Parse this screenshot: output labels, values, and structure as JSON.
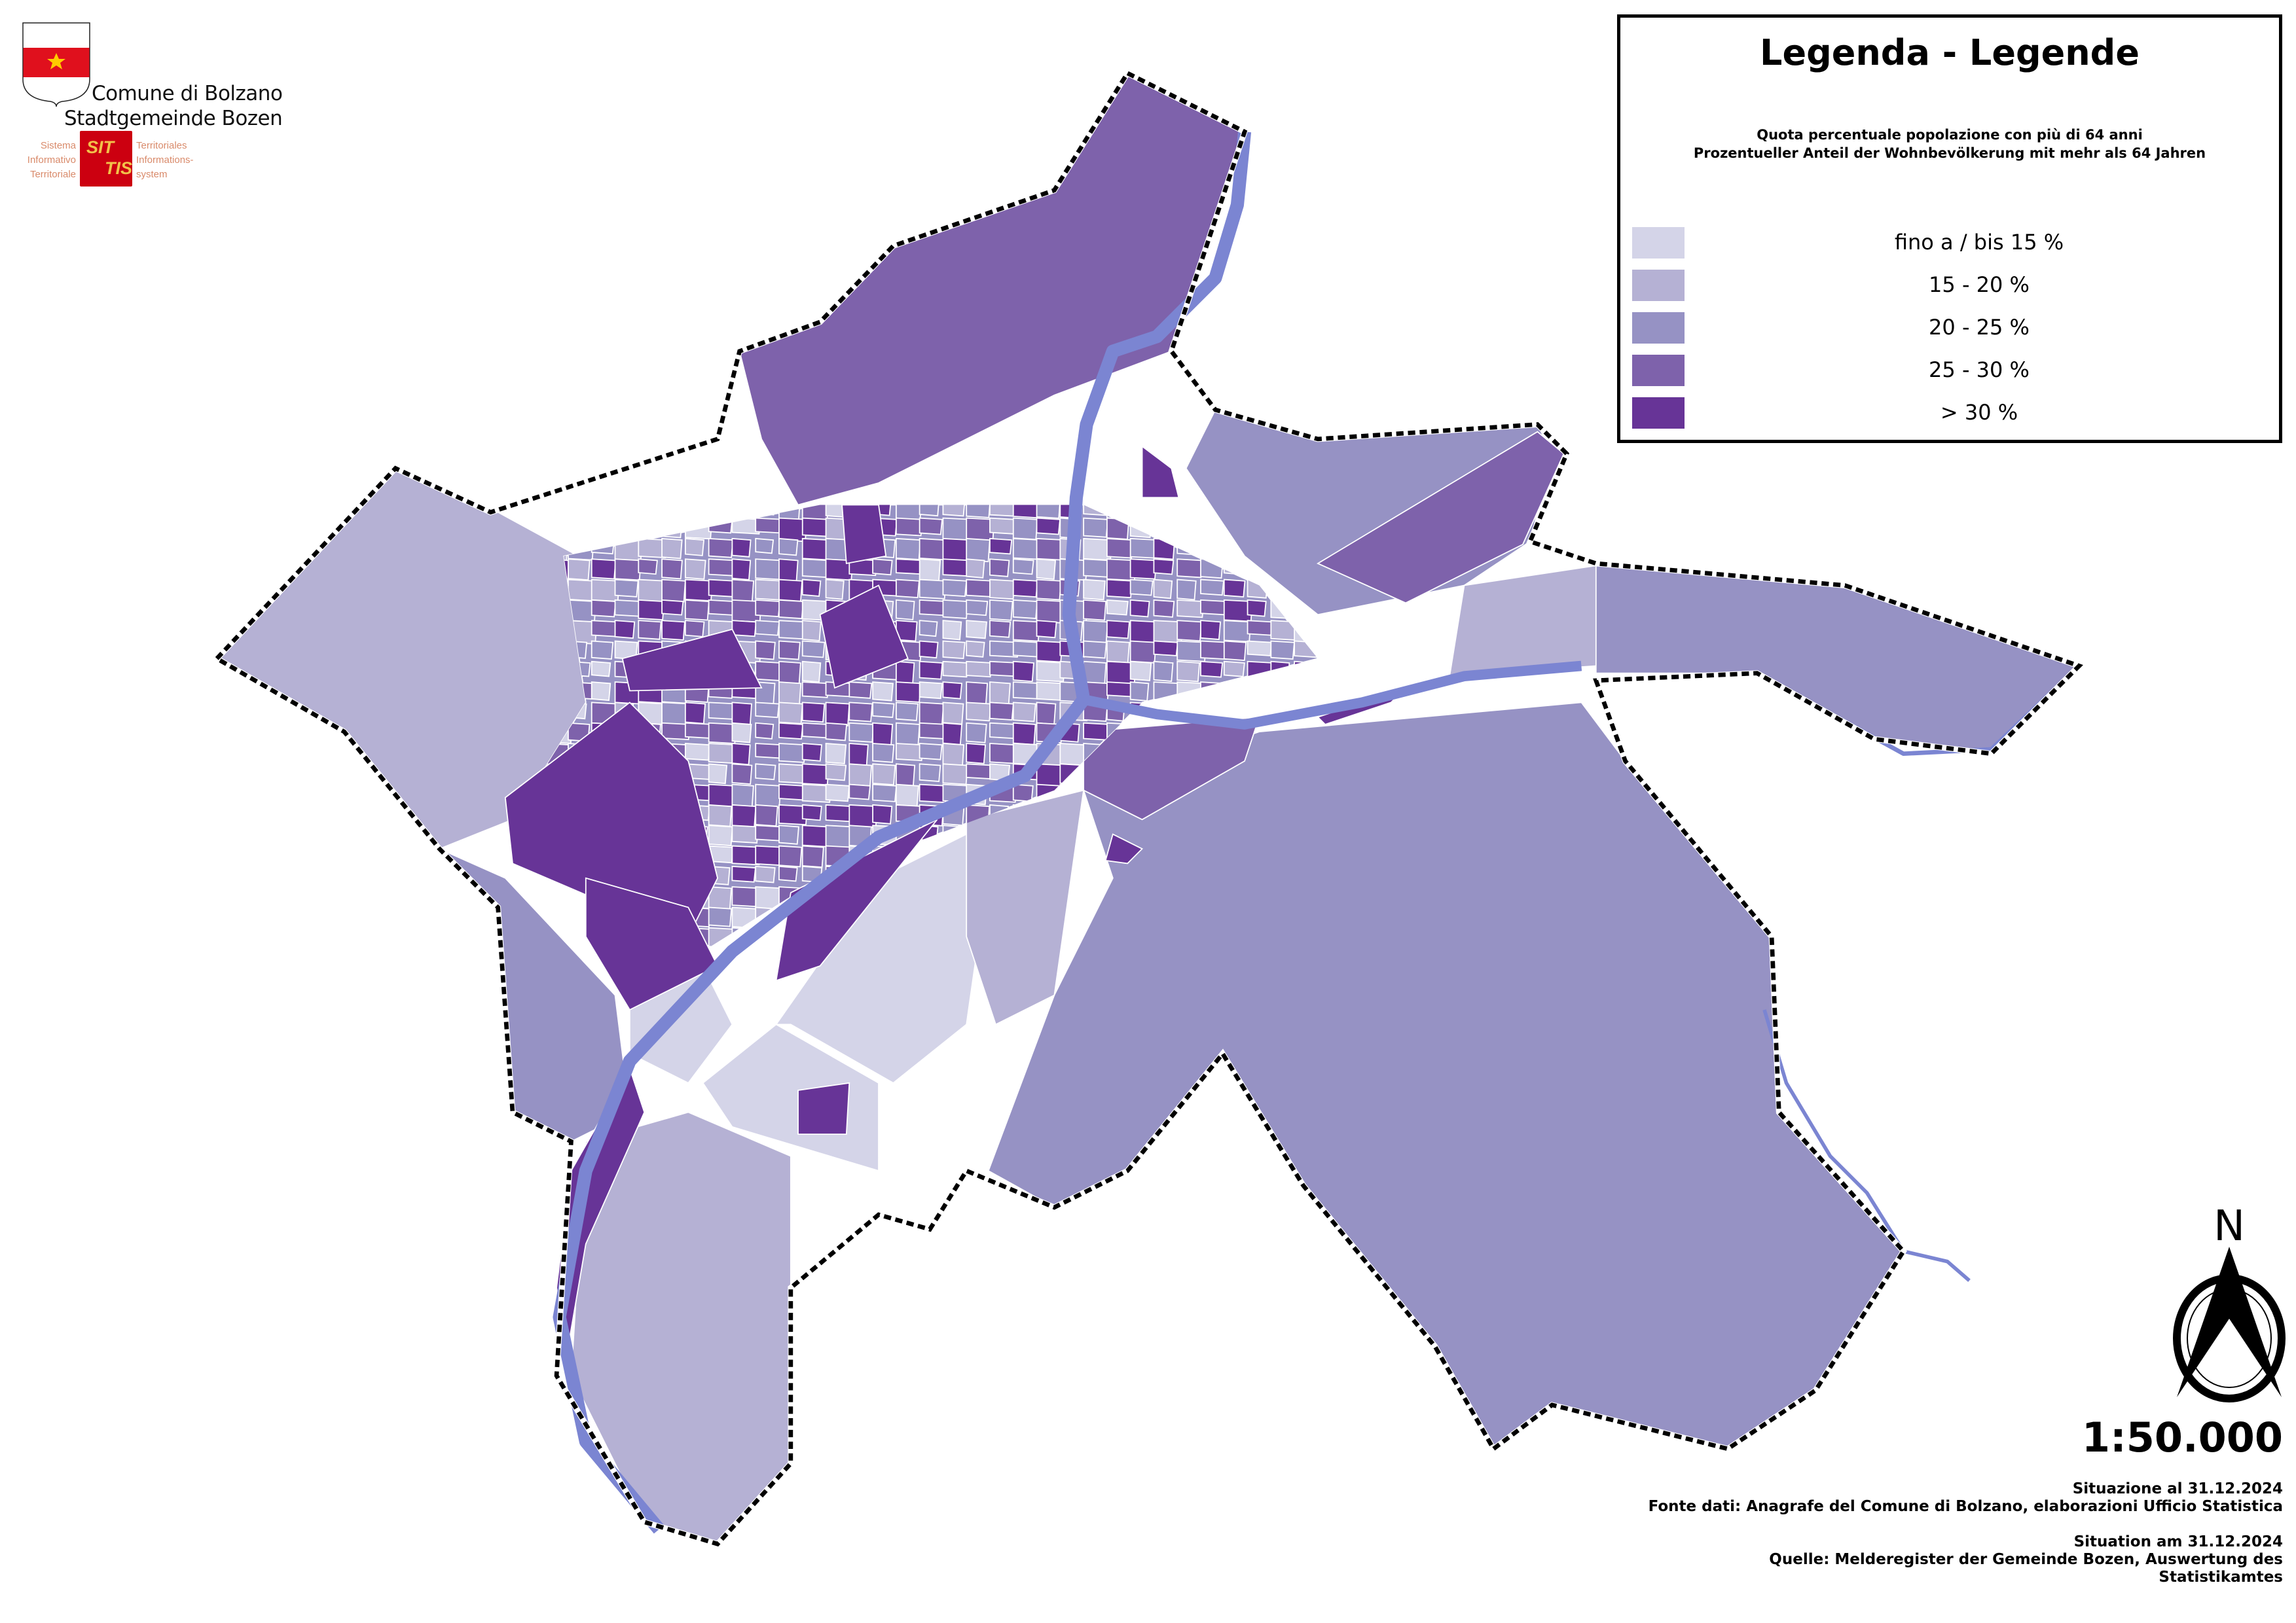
{
  "logo": {
    "city_it": "Comune di Bolzano",
    "city_de": "Stadtgemeinde Bozen",
    "sit_badge_top": "SIT",
    "sit_badge_bottom": "TIS",
    "sit_it": [
      "Sistema",
      "Informativo",
      "Territoriale"
    ],
    "sit_de": [
      "Territoriales",
      "Informations-",
      "system"
    ]
  },
  "legend": {
    "title": "Legenda - Legende",
    "subtitle_it": "Quota percentuale popolazione con più di 64 anni",
    "subtitle_de": "Prozentueller Anteil der Wohnbevölkerung mit mehr als 64 Jahren",
    "classes": [
      {
        "label": "fino a / bis 15 %",
        "color": "#d4d4e8"
      },
      {
        "label": "15 - 20 %",
        "color": "#b5b1d4"
      },
      {
        "label": "20 - 25 %",
        "color": "#9692c4"
      },
      {
        "label": "25 - 30 %",
        "color": "#7e62ab"
      },
      {
        "label": "> 30 %",
        "color": "#673497"
      }
    ]
  },
  "map": {
    "river_color": "#7b85d2",
    "boundary_style": "dashed black",
    "north_label": "N"
  },
  "scale": "1:50.000",
  "credits": {
    "it_date": "Situazione al 31.12.2024",
    "it_source": "Fonte dati: Anagrafe del Comune di Bolzano, elaborazioni Ufficio Statistica",
    "de_date": "Situation am 31.12.2024",
    "de_source_1": "Quelle: Melderegister der Gemeinde Bozen, Auswertung des",
    "de_source_2": "Statistikamtes"
  }
}
